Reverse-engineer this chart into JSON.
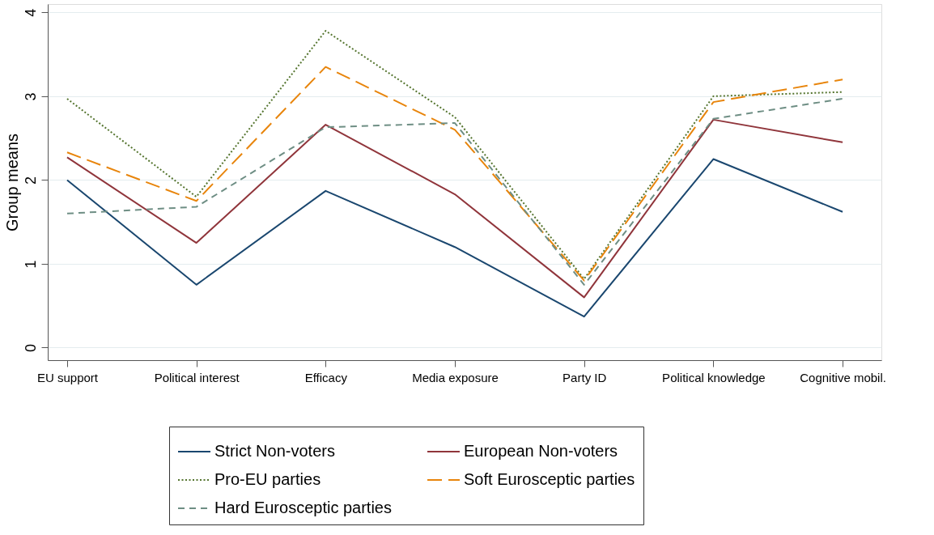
{
  "chart_data": {
    "type": "line",
    "ylabel": "Group means",
    "categories": [
      "EU support",
      "Political interest",
      "Efficacy",
      "Media exposure",
      "Party ID",
      "Political knowledge",
      "Cognitive mobil."
    ],
    "series": [
      {
        "name": "Strict Non-voters",
        "color": "#1a476f",
        "line_style": "solid",
        "values": [
          2.0,
          0.75,
          1.87,
          1.2,
          0.37,
          2.25,
          1.62
        ]
      },
      {
        "name": "European Non-voters",
        "color": "#90353b",
        "line_style": "solid",
        "values": [
          2.27,
          1.25,
          2.66,
          1.83,
          0.6,
          2.72,
          2.45
        ]
      },
      {
        "name": "Pro-EU parties",
        "color": "#55752f",
        "line_style": "dotted",
        "values": [
          2.97,
          1.8,
          3.78,
          2.75,
          0.82,
          3.0,
          3.05
        ]
      },
      {
        "name": "Soft Eurosceptic parties",
        "color": "#e8850c",
        "line_style": "longdash",
        "values": [
          2.33,
          1.75,
          3.35,
          2.6,
          0.8,
          2.93,
          3.2
        ]
      },
      {
        "name": "Hard Eurosceptic parties",
        "color": "#6e8e84",
        "line_style": "dashed",
        "values": [
          1.6,
          1.68,
          2.63,
          2.68,
          0.75,
          2.73,
          2.97
        ]
      }
    ],
    "ylim": [
      -0.15,
      4.1
    ],
    "yticks": [
      0,
      1,
      2,
      3,
      4
    ],
    "grid": "y",
    "legend": "bottom",
    "marker": "none"
  }
}
